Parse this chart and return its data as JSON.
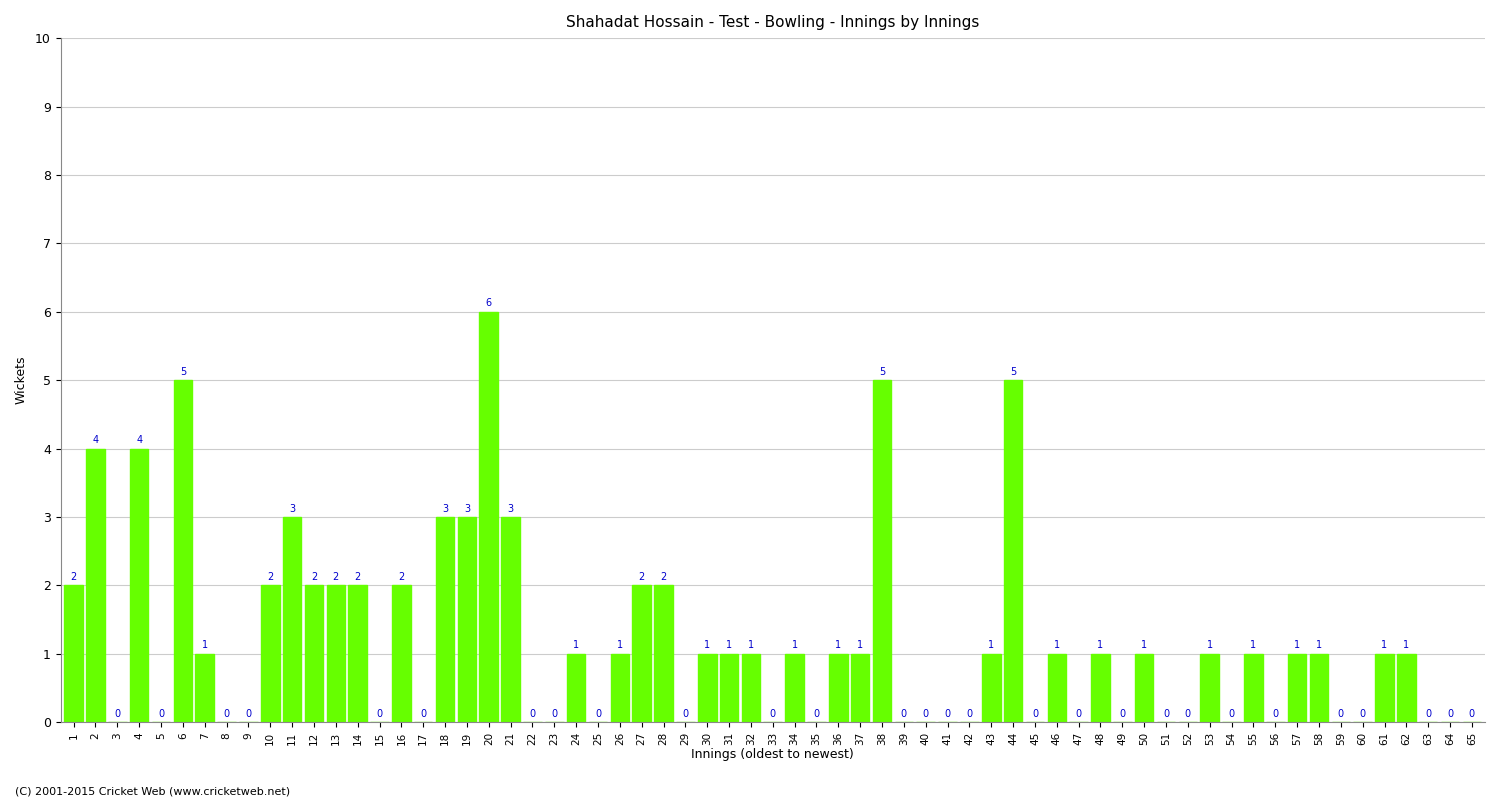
{
  "title": "Shahadat Hossain - Test - Bowling - Innings by Innings",
  "xlabel": "Innings (oldest to newest)",
  "ylabel": "Wickets",
  "ylim": [
    0,
    10
  ],
  "yticks": [
    0,
    1,
    2,
    3,
    4,
    5,
    6,
    7,
    8,
    9,
    10
  ],
  "background_color": "#ffffff",
  "bar_color": "#66ff00",
  "label_color": "#0000cc",
  "innings": [
    1,
    2,
    3,
    4,
    5,
    6,
    7,
    8,
    9,
    10,
    11,
    12,
    13,
    14,
    15,
    16,
    17,
    18,
    19,
    20,
    21,
    22,
    23,
    24,
    25,
    26,
    27,
    28,
    29,
    30,
    31,
    32,
    33,
    34,
    35,
    36,
    37,
    38,
    39,
    40,
    41,
    42,
    43,
    44,
    45,
    46,
    47,
    48,
    49,
    50,
    51,
    52,
    53,
    54,
    55,
    56,
    57,
    58,
    59,
    60,
    61,
    62,
    63,
    64,
    65
  ],
  "wickets": [
    2,
    4,
    0,
    4,
    0,
    5,
    1,
    0,
    0,
    2,
    3,
    2,
    2,
    2,
    0,
    2,
    0,
    3,
    3,
    6,
    3,
    0,
    0,
    1,
    0,
    1,
    2,
    2,
    0,
    1,
    1,
    1,
    0,
    1,
    0,
    1,
    1,
    5,
    0,
    0,
    0,
    0,
    1,
    5,
    0,
    1,
    0,
    1,
    0,
    1,
    0,
    0,
    1,
    0,
    1,
    0,
    1,
    1,
    0,
    0,
    1,
    1,
    0,
    0,
    0
  ],
  "footer": "(C) 2001-2015 Cricket Web (www.cricketweb.net)"
}
